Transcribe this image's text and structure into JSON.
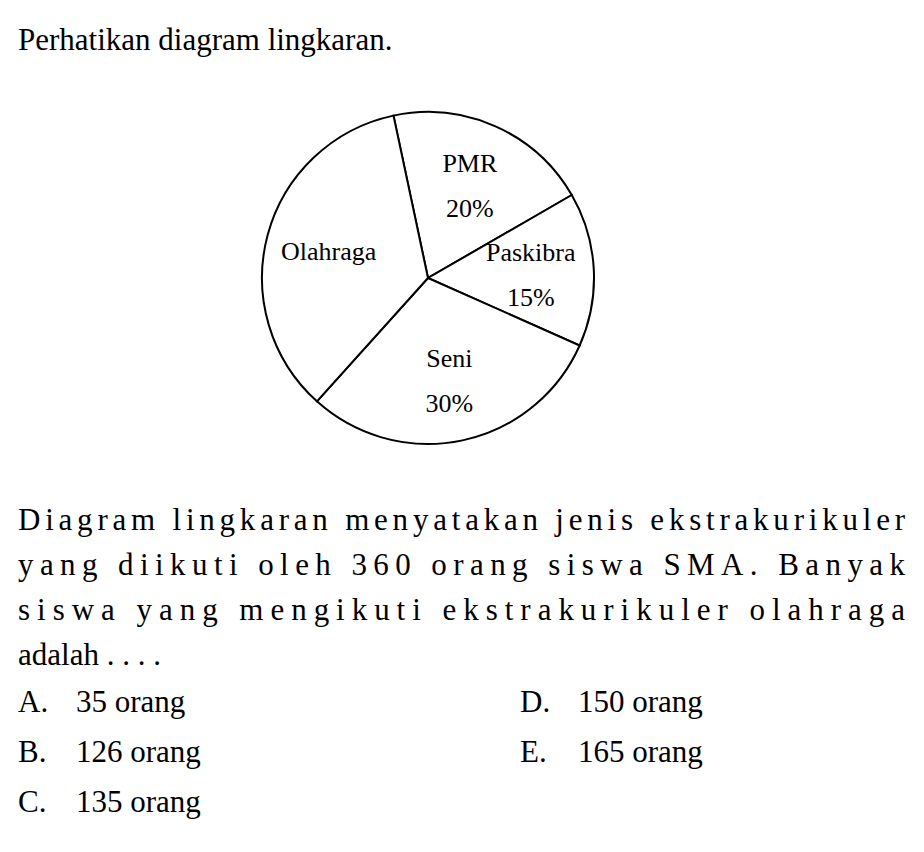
{
  "instruction": "Perhatikan diagram lingkaran.",
  "chart_data": {
    "type": "pie",
    "categories": [
      "PMR",
      "Paskibra",
      "Seni",
      "Olahraga"
    ],
    "values": [
      20,
      15,
      30,
      35
    ],
    "value_labels": [
      "20%",
      "15%",
      "30%",
      null
    ],
    "color": "#ffffff",
    "data_labels": true
  },
  "question_lines": [
    "Diagram lingkaran menyatakan jenis ekstrakurikuler",
    "yang diikuti oleh 360 orang siswa SMA. Banyak",
    "siswa yang mengikuti ekstrakurikuler olahraga",
    "adalah . . . ."
  ],
  "options": [
    {
      "letter": "A.",
      "text": "35 orang"
    },
    {
      "letter": "B.",
      "text": "126 orang"
    },
    {
      "letter": "C.",
      "text": "135 orang"
    },
    {
      "letter": "D.",
      "text": "150 orang"
    },
    {
      "letter": "E.",
      "text": "165 orang"
    }
  ]
}
